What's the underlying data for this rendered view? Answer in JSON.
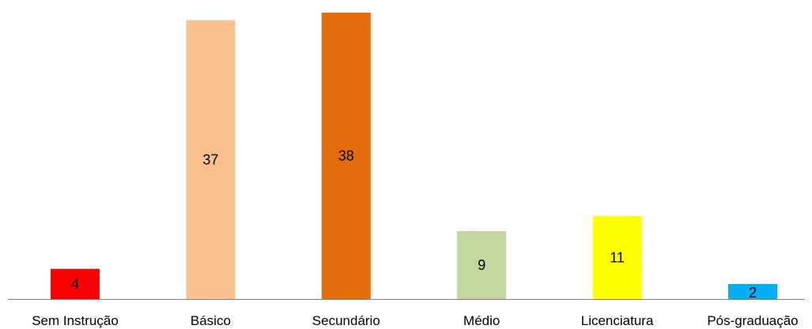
{
  "chart_data": {
    "type": "bar",
    "categories": [
      "Sem Instrução",
      "Básico",
      "Secundário",
      "Médio",
      "Licenciatura",
      "Pós-graduação"
    ],
    "values": [
      4,
      37,
      38,
      9,
      11,
      2
    ],
    "data_labels": [
      "4",
      "37",
      "38",
      "9",
      "11",
      "2"
    ],
    "colors": [
      "#ff0000",
      "#f9c08f",
      "#e46c0a",
      "#c3d69b",
      "#ffff00",
      "#00b0f0"
    ],
    "axis_color": "#808080",
    "title": "",
    "xlabel": "",
    "ylabel": "",
    "ylim": [
      0,
      38
    ],
    "grid": false,
    "legend": "none"
  }
}
